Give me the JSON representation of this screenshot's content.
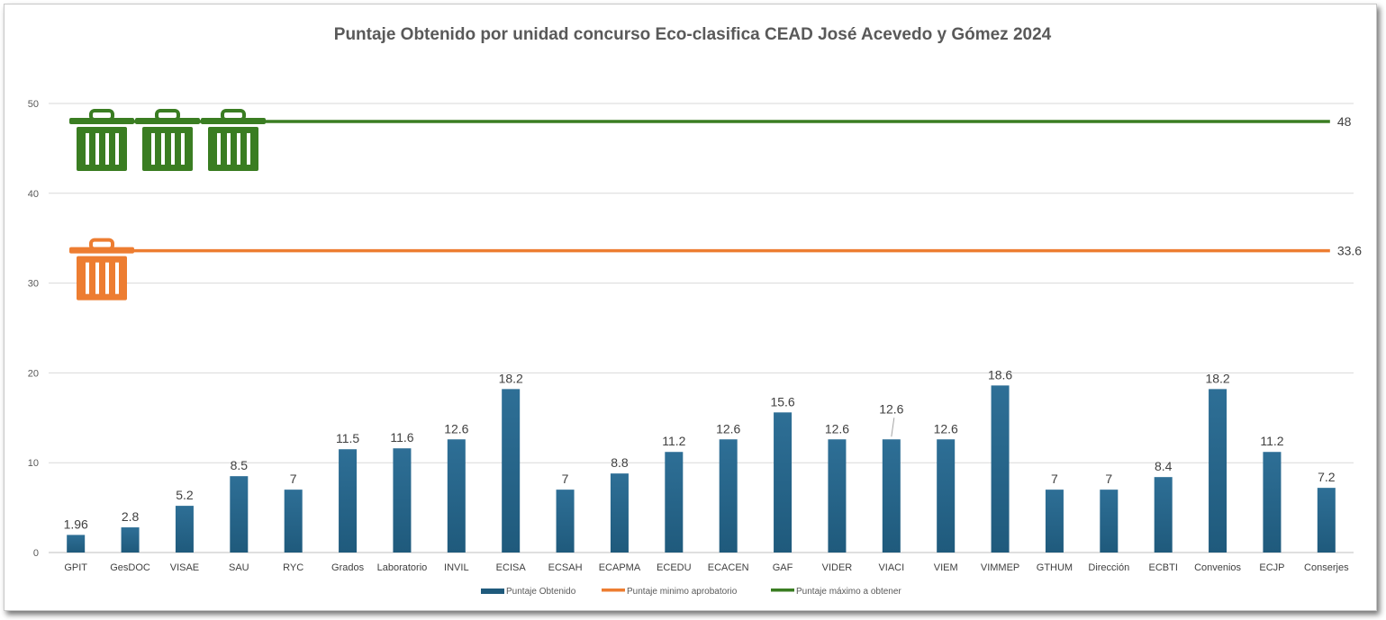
{
  "chart_data": {
    "type": "bar",
    "title": "Puntaje Obtenido por unidad concurso Eco-clasifica  CEAD José Acevedo y Gómez 2024",
    "xlabel": "",
    "ylabel": "",
    "ylim": [
      0,
      50
    ],
    "yticks": [
      "0",
      "10",
      "20",
      "30",
      "40",
      "50"
    ],
    "ytick_values": [
      0,
      10,
      20,
      30,
      40,
      50
    ],
    "grid": true,
    "legend_position": "bottom",
    "categories": [
      "GPIT",
      "GesDOC",
      "VISAE",
      "SAU",
      "RYC",
      "Grados",
      "Laboratorio",
      "INVIL",
      "ECISA",
      "ECSAH",
      "ECAPMA",
      "ECEDU",
      "ECACEN",
      "GAF",
      "VIDER",
      "VIACI",
      "VIEM",
      "VIMMEP",
      "GTHUM",
      "Dirección",
      "ECBTI",
      "Convenios",
      "ECJP",
      "Conserjes"
    ],
    "series": [
      {
        "name": "Puntaje Obtenido",
        "kind": "bar",
        "color": "#1f5a7c",
        "values": [
          1.96,
          2.8,
          5.2,
          8.5,
          7,
          11.5,
          11.6,
          12.6,
          18.2,
          7,
          8.8,
          11.2,
          12.6,
          15.6,
          12.6,
          12.6,
          12.6,
          18.6,
          7,
          7,
          8.4,
          18.2,
          11.2,
          7.2
        ],
        "labels": [
          "1.96",
          "2.8",
          "5.2",
          "8.5",
          "7",
          "11.5",
          "11.6",
          "12.6",
          "18.2",
          "7",
          "8.8",
          "11.2",
          "12.6",
          "15.6",
          "12.6",
          "12.6",
          "12.6",
          "18.6",
          "7",
          "7",
          "8.4",
          "18.2",
          "11.2",
          "7.2"
        ]
      },
      {
        "name": "Puntaje minimo aprobatorio",
        "kind": "line",
        "color": "#ed7d31",
        "value": 33.6,
        "label": "33.6",
        "icon": "trash-bin-icon",
        "icon_count": 1
      },
      {
        "name": "Puntaje máximo a obtener",
        "kind": "line",
        "color": "#3a7d22",
        "value": 48,
        "label": "48",
        "icon": "trash-bin-icon",
        "icon_count": 3
      }
    ]
  }
}
